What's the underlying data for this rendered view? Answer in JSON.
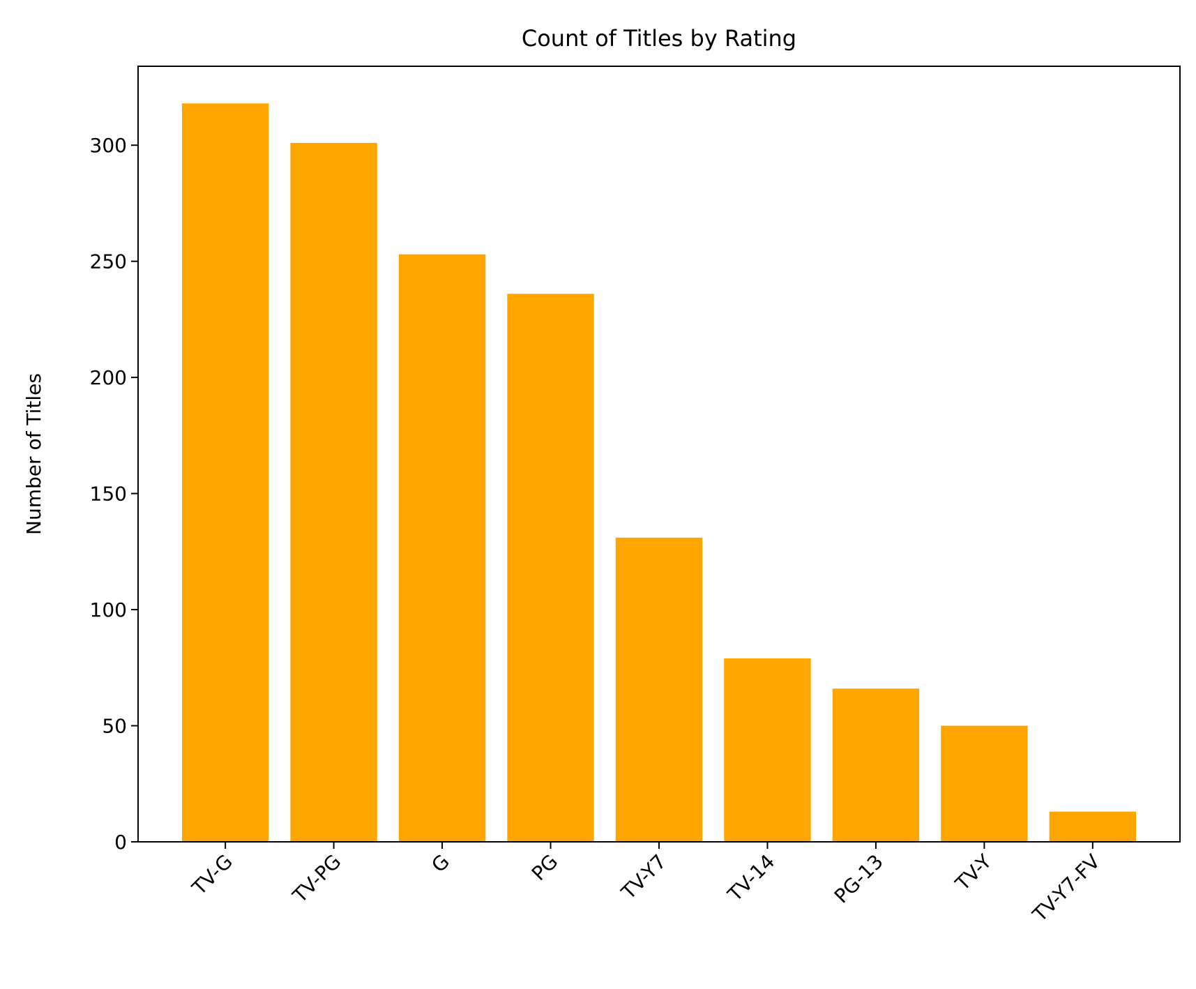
{
  "chart_data": {
    "type": "bar",
    "title": "Count of Titles by Rating",
    "xlabel": "",
    "ylabel": "Number of Titles",
    "categories": [
      "TV-G",
      "TV-PG",
      "G",
      "PG",
      "TV-Y7",
      "TV-14",
      "PG-13",
      "TV-Y",
      "TV-Y7-FV"
    ],
    "values": [
      318,
      301,
      253,
      236,
      131,
      79,
      66,
      50,
      13
    ],
    "ylim": [
      0,
      334
    ],
    "yticks": [
      0,
      50,
      100,
      150,
      200,
      250,
      300
    ],
    "ytick_labels": [
      "0",
      "50",
      "100",
      "150",
      "200",
      "250",
      "300"
    ],
    "bar_color": "#FFA500",
    "grid": false,
    "legend": "none"
  }
}
